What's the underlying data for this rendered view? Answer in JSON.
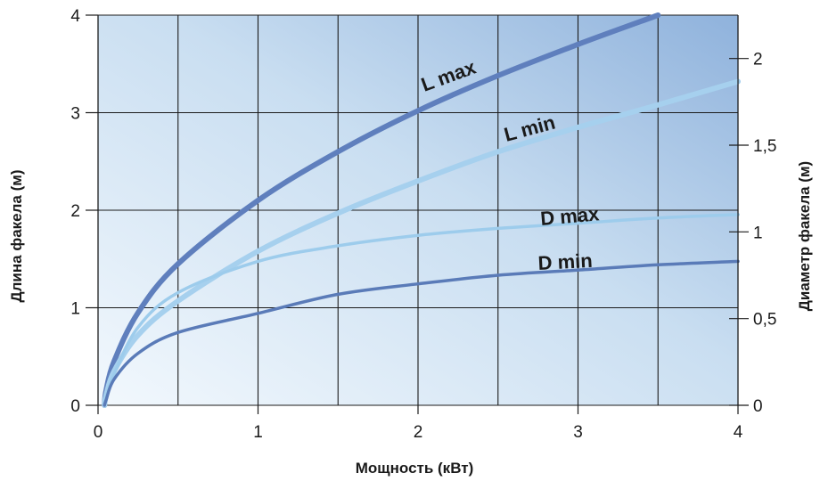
{
  "chart_data": {
    "type": "line",
    "xlabel": "Мощность (кВт)",
    "ylabel_left": "Длина факела (м)",
    "ylabel_right": "Диаметр факела (м)",
    "xlim": [
      0,
      4
    ],
    "ylim_left": [
      0,
      4
    ],
    "ylim_right": [
      0,
      2.25
    ],
    "x_ticks": [
      "0",
      "1",
      "2",
      "3",
      "4"
    ],
    "y_ticks_left": [
      "0",
      "1",
      "2",
      "3",
      "4"
    ],
    "y_ticks_right": [
      "0",
      "0,5",
      "1",
      "1,5",
      "2"
    ],
    "grid": true,
    "series": [
      {
        "name": "L max",
        "axis": "left",
        "color": "#5f7fbd",
        "x": [
          0.05,
          0.1,
          0.25,
          0.5,
          1,
          1.5,
          2,
          2.5,
          3,
          3.5
        ],
        "y": [
          0.15,
          0.45,
          0.95,
          1.45,
          2.1,
          2.6,
          3.02,
          3.38,
          3.7,
          4.0
        ]
      },
      {
        "name": "L min",
        "axis": "left",
        "color": "#a6d0ee",
        "x": [
          0.05,
          0.1,
          0.25,
          0.5,
          1,
          1.5,
          2,
          2.5,
          3,
          3.5,
          4
        ],
        "y": [
          0.1,
          0.35,
          0.72,
          1.07,
          1.58,
          1.97,
          2.3,
          2.6,
          2.85,
          3.08,
          3.32
        ]
      },
      {
        "name": "D max",
        "axis": "right",
        "color": "#9dccec",
        "x": [
          0.05,
          0.1,
          0.25,
          0.5,
          1,
          1.5,
          2,
          2.5,
          3,
          3.5,
          4
        ],
        "y": [
          0.05,
          0.18,
          0.45,
          0.65,
          0.83,
          0.92,
          0.98,
          1.02,
          1.05,
          1.08,
          1.1
        ]
      },
      {
        "name": "D min",
        "axis": "right",
        "color": "#5a7bb8",
        "x": [
          0.05,
          0.1,
          0.25,
          0.5,
          1,
          1.5,
          2,
          2.5,
          3,
          3.5,
          4
        ],
        "y": [
          0.03,
          0.15,
          0.3,
          0.42,
          0.53,
          0.64,
          0.7,
          0.75,
          0.78,
          0.81,
          0.83
        ]
      }
    ]
  }
}
